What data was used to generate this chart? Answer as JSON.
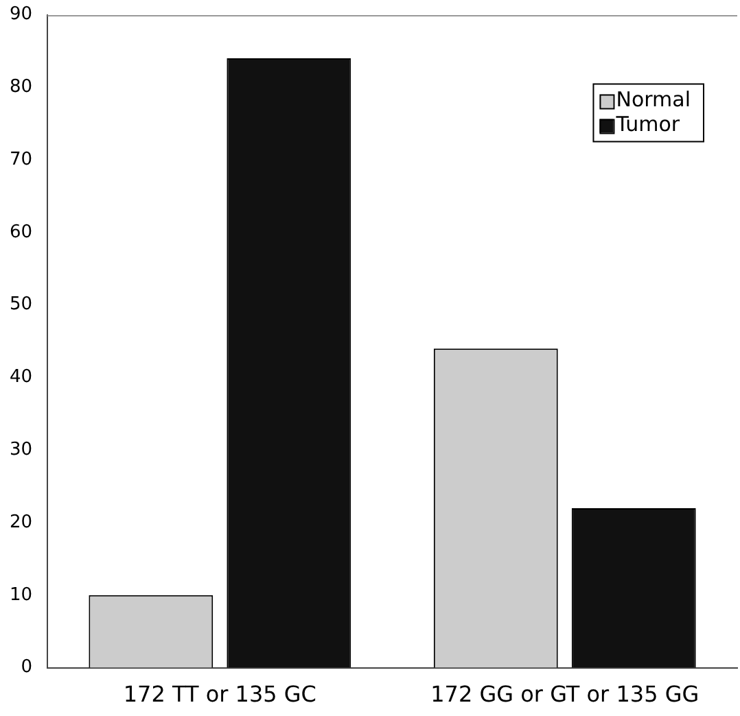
{
  "chart_data": {
    "type": "bar",
    "categories": [
      "172 TT or 135 GC",
      "172 GG or GT or 135 GG"
    ],
    "series": [
      {
        "name": "Normal",
        "color": "#cccccc",
        "values": [
          10,
          44
        ]
      },
      {
        "name": "Tumor",
        "color": "#111111",
        "values": [
          84,
          22
        ]
      }
    ],
    "ylim": [
      0,
      90
    ],
    "yticks": [
      0,
      10,
      20,
      30,
      40,
      50,
      60,
      70,
      80,
      90
    ],
    "grid": false,
    "legend": "top right"
  }
}
